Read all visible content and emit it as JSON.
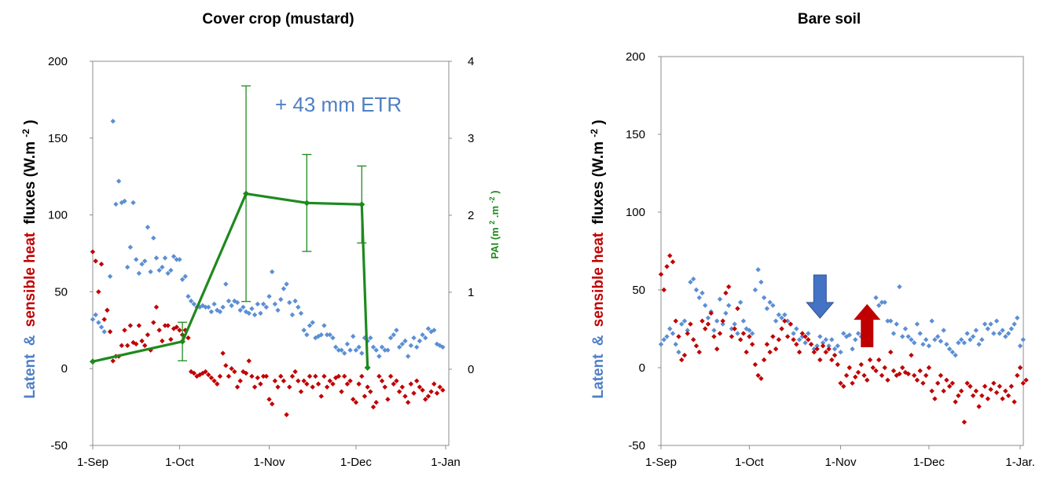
{
  "colors": {
    "latent": "#5b8fd4",
    "sensible": "#c00000",
    "pai": "#1e8a1e",
    "arrow_blue": "#4472c4",
    "arrow_red": "#c00000",
    "frame": "#8c8c8c"
  },
  "chart_data": [
    {
      "type": "scatter",
      "title": "Cover crop (mustard)",
      "ylabel": {
        "latent": "Latent",
        "amp": "&",
        "sensible": "sensible heat",
        "fluxes": "fluxes (W.m",
        "sup": "-2",
        "close": ")"
      },
      "y2label": {
        "main": "PAI (m",
        "sup1": "2",
        "mid": ".m",
        "sup2": "-2",
        "close": ")"
      },
      "ylim": [
        -50,
        200
      ],
      "yticks": [
        "200",
        "150",
        "100",
        "50",
        "0",
        "-50"
      ],
      "y2lim": [
        -0.5,
        4
      ],
      "y2ticks": [
        "4",
        "3",
        "2",
        "1",
        "0"
      ],
      "xticks": [
        "1-Sep",
        "1-Oct",
        "1-Nov",
        "1-Dec",
        "1-Jan"
      ],
      "annotation": "+ 43 mm ETR",
      "series": [
        {
          "name": "Latent",
          "x_start": "1-Sep",
          "values": [
            32,
            35,
            30,
            27,
            24,
            38,
            60,
            161,
            107,
            122,
            108,
            109,
            66,
            79,
            108,
            71,
            62,
            68,
            70,
            92,
            63,
            85,
            72,
            64,
            66,
            72,
            62,
            64,
            73,
            71,
            71,
            58,
            60,
            47,
            44,
            42,
            40,
            40,
            41,
            40,
            40,
            37,
            42,
            38,
            37,
            40,
            55,
            44,
            41,
            44,
            43,
            38,
            40,
            37,
            36,
            39,
            35,
            42,
            36,
            42,
            40,
            47,
            63,
            42,
            38,
            45,
            52,
            55,
            43,
            35,
            44,
            40,
            36,
            25,
            22,
            28,
            30,
            20,
            21,
            22,
            28,
            22,
            22,
            20,
            14,
            12,
            12,
            10,
            16,
            12,
            21,
            12,
            14,
            10,
            20,
            18,
            20,
            14,
            12,
            8,
            14,
            12,
            12,
            20,
            22,
            25,
            14,
            16,
            18,
            8,
            15,
            20,
            14,
            18,
            22,
            20,
            26,
            24,
            25,
            16,
            15,
            14
          ]
        },
        {
          "name": "Sensible heat",
          "x_start": "1-Sep",
          "values": [
            76,
            70,
            50,
            68,
            32,
            38,
            24,
            5,
            8,
            8,
            15,
            25,
            15,
            28,
            17,
            16,
            28,
            18,
            15,
            22,
            12,
            30,
            40,
            25,
            18,
            28,
            28,
            19,
            26,
            27,
            25,
            22,
            25,
            20,
            -2,
            -3,
            -5,
            -4,
            -3,
            -2,
            -4,
            -6,
            -8,
            -10,
            -5,
            10,
            2,
            -5,
            0,
            -2,
            -12,
            -8,
            -2,
            -3,
            5,
            -5,
            -12,
            -6,
            -10,
            -5,
            -5,
            -20,
            -23,
            -8,
            -12,
            -5,
            -8,
            -30,
            -12,
            -5,
            -2,
            -8,
            -15,
            -8,
            -10,
            -5,
            -12,
            -5,
            -10,
            -18,
            -5,
            -12,
            -8,
            -10,
            -6,
            -5,
            -15,
            -5,
            -10,
            -8,
            -20,
            -22,
            -10,
            -5,
            -18,
            -12,
            -15,
            -25,
            -22,
            -5,
            -8,
            -12,
            -20,
            -5,
            -10,
            -8,
            -15,
            -12,
            -18,
            -22,
            -10,
            -16,
            -8,
            -12,
            -14,
            -20,
            -18,
            -15,
            -10,
            -16,
            -12,
            -14
          ]
        },
        {
          "name": "PAI",
          "x": [
            "1-Sep",
            "2-Oct",
            "24-Oct",
            "14-Nov",
            "3-Dec",
            "5-Dec"
          ],
          "values": [
            0.1,
            0.36,
            2.28,
            2.16,
            2.14,
            0.02
          ],
          "err": [
            0,
            0.25,
            1.4,
            0.63,
            0.5,
            0
          ]
        }
      ]
    },
    {
      "type": "scatter",
      "title": "Bare soil",
      "ylabel": {
        "latent": "Latent",
        "amp": "&",
        "sensible": "sensible heat",
        "fluxes": "fluxes (W.m",
        "sup": "-2",
        "close": ")"
      },
      "ylim": [
        -50,
        200
      ],
      "yticks": [
        "200",
        "150",
        "100",
        "50",
        "0",
        "-50"
      ],
      "xticks": [
        "1-Sep",
        "1-Oct",
        "1-Nov",
        "1-Dec",
        "1-Jar."
      ],
      "arrows": [
        {
          "direction": "down",
          "date": "25-Oct"
        },
        {
          "direction": "up",
          "date": "10-Nov"
        }
      ],
      "series": [
        {
          "name": "Latent",
          "x_start": "1-Sep",
          "values": [
            15,
            18,
            20,
            25,
            22,
            15,
            10,
            28,
            30,
            24,
            55,
            57,
            50,
            45,
            48,
            40,
            32,
            36,
            24,
            30,
            44,
            28,
            35,
            40,
            25,
            28,
            22,
            42,
            30,
            25,
            24,
            22,
            50,
            63,
            55,
            45,
            38,
            42,
            40,
            30,
            34,
            32,
            34,
            30,
            28,
            22,
            25,
            18,
            20,
            16,
            22,
            15,
            12,
            14,
            20,
            16,
            18,
            14,
            18,
            12,
            14,
            10,
            22,
            20,
            21,
            12,
            18,
            22,
            20,
            20,
            15,
            25,
            34,
            45,
            40,
            42,
            42,
            30,
            30,
            22,
            28,
            52,
            20,
            25,
            20,
            18,
            16,
            28,
            22,
            15,
            18,
            14,
            30,
            18,
            20,
            17,
            24,
            15,
            12,
            10,
            8,
            16,
            18,
            16,
            22,
            18,
            20,
            24,
            15,
            18,
            28,
            25,
            28,
            22,
            30,
            22,
            24,
            20,
            22,
            25,
            28,
            32,
            14,
            18
          ]
        },
        {
          "name": "Sensible heat",
          "x_start": "1-Sep",
          "values": [
            60,
            50,
            65,
            72,
            68,
            30,
            20,
            5,
            8,
            22,
            28,
            18,
            14,
            10,
            30,
            25,
            28,
            35,
            20,
            12,
            22,
            30,
            48,
            52,
            20,
            25,
            38,
            18,
            22,
            10,
            20,
            15,
            2,
            -5,
            -7,
            5,
            15,
            10,
            20,
            12,
            18,
            25,
            30,
            20,
            28,
            18,
            15,
            10,
            22,
            20,
            18,
            15,
            10,
            12,
            5,
            14,
            10,
            12,
            5,
            8,
            2,
            -10,
            -12,
            -5,
            0,
            -10,
            -6,
            -3,
            2,
            -5,
            -8,
            5,
            0,
            -2,
            5,
            -5,
            0,
            -8,
            10,
            -2,
            -5,
            -4,
            0,
            -3,
            -4,
            8,
            -5,
            -8,
            -2,
            -10,
            -5,
            0,
            -15,
            -20,
            -10,
            -5,
            -15,
            -8,
            -12,
            -10,
            -22,
            -18,
            -15,
            -35,
            -10,
            -12,
            -18,
            -15,
            -25,
            -18,
            -12,
            -20,
            -14,
            -10,
            -16,
            -12,
            -20,
            -15,
            -18,
            -12,
            -22,
            -5,
            0,
            -10,
            -8
          ]
        }
      ]
    }
  ]
}
